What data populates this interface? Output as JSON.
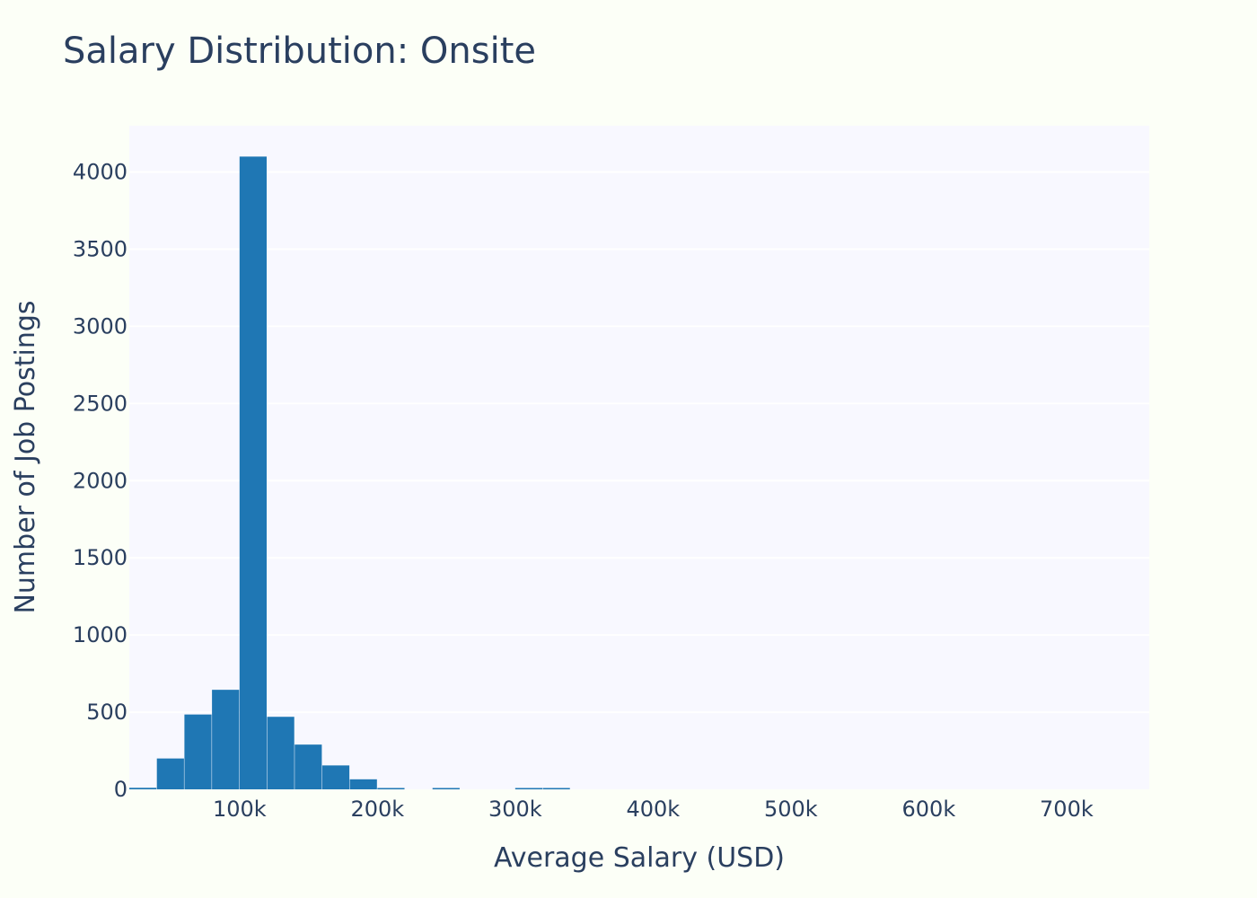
{
  "chart_data": {
    "type": "bar",
    "title": "Salary Distribution: Onsite",
    "xlabel": "Average Salary (USD)",
    "ylabel": "Number of Job Postings",
    "xlim": [
      20000,
      760000
    ],
    "ylim": [
      0,
      4300
    ],
    "x_ticks": [
      {
        "value": 100000,
        "label": "100k"
      },
      {
        "value": 200000,
        "label": "200k"
      },
      {
        "value": 300000,
        "label": "300k"
      },
      {
        "value": 400000,
        "label": "400k"
      },
      {
        "value": 500000,
        "label": "500k"
      },
      {
        "value": 600000,
        "label": "600k"
      },
      {
        "value": 700000,
        "label": "700k"
      }
    ],
    "y_ticks": [
      {
        "value": 0,
        "label": "0"
      },
      {
        "value": 500,
        "label": "500"
      },
      {
        "value": 1000,
        "label": "1000"
      },
      {
        "value": 1500,
        "label": "1500"
      },
      {
        "value": 2000,
        "label": "2000"
      },
      {
        "value": 2500,
        "label": "2500"
      },
      {
        "value": 3000,
        "label": "3000"
      },
      {
        "value": 3500,
        "label": "3500"
      },
      {
        "value": 4000,
        "label": "4000"
      }
    ],
    "bin_width": 20000,
    "bins": [
      {
        "x0": 20000,
        "count": 10
      },
      {
        "x0": 40000,
        "count": 200
      },
      {
        "x0": 60000,
        "count": 485
      },
      {
        "x0": 80000,
        "count": 645
      },
      {
        "x0": 100000,
        "count": 4100
      },
      {
        "x0": 120000,
        "count": 470
      },
      {
        "x0": 140000,
        "count": 290
      },
      {
        "x0": 160000,
        "count": 155
      },
      {
        "x0": 180000,
        "count": 65
      },
      {
        "x0": 200000,
        "count": 5
      },
      {
        "x0": 220000,
        "count": 0
      },
      {
        "x0": 240000,
        "count": 3
      },
      {
        "x0": 260000,
        "count": 0
      },
      {
        "x0": 280000,
        "count": 0
      },
      {
        "x0": 300000,
        "count": 2
      },
      {
        "x0": 320000,
        "count": 2
      }
    ],
    "grid": true,
    "legend": "none",
    "colors": {
      "bar": "#1f77b4",
      "plot_bg": "#f8f8ff",
      "paper_bg": "#fcfff7",
      "grid": "#ffffff",
      "text": "#2a3f5f"
    }
  }
}
